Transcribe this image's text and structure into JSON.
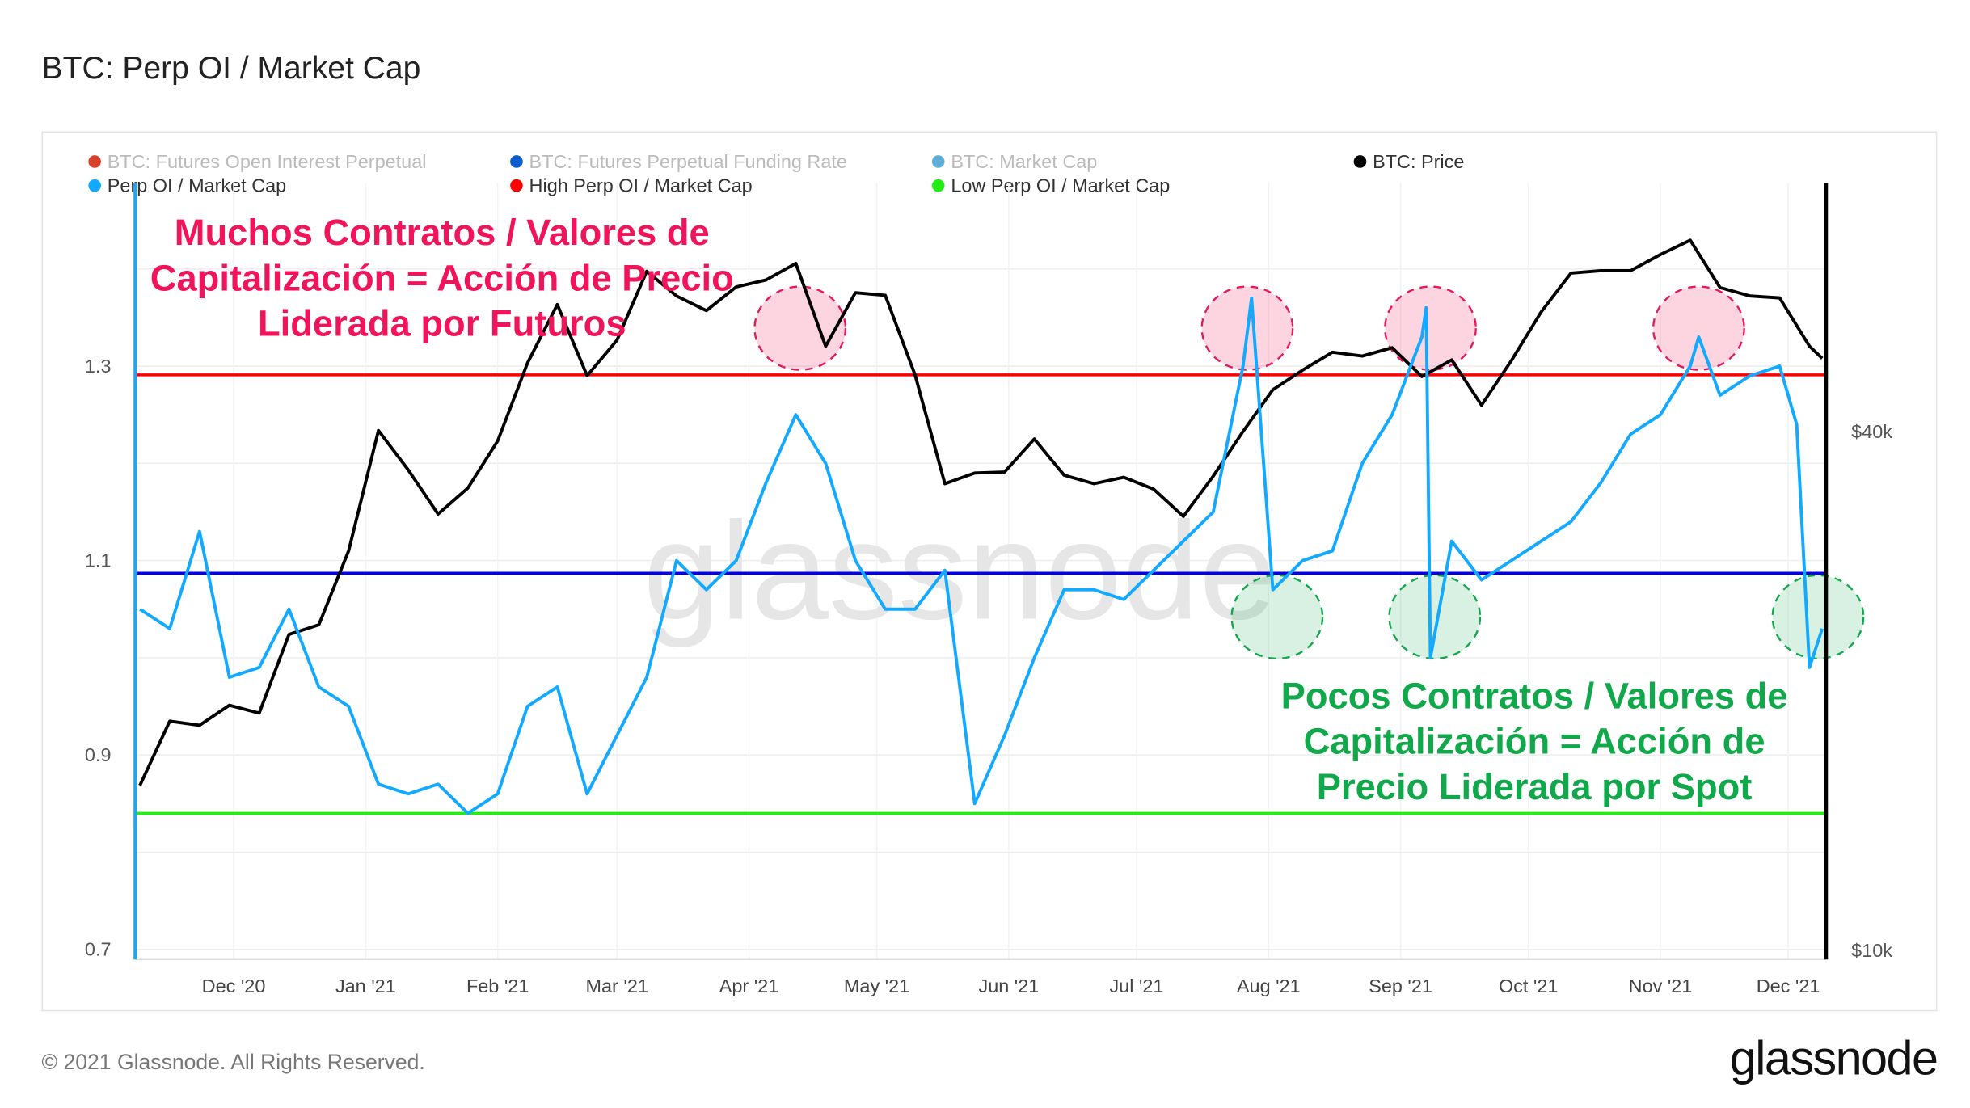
{
  "title": "BTC: Perp OI / Market Cap",
  "footer": "© 2021 Glassnode. All Rights Reserved.",
  "logo": "glassnode",
  "watermark": "glassnode",
  "legend": [
    {
      "label": "BTC: Futures Open Interest Perpetual",
      "color": "#d9412f",
      "active": false
    },
    {
      "label": "BTC: Futures Perpetual Funding Rate",
      "color": "#0a5cc9",
      "active": false
    },
    {
      "label": "BTC: Market Cap",
      "color": "#5eaed6",
      "active": false
    },
    {
      "label": "BTC: Price",
      "color": "#000000",
      "active": true
    },
    {
      "label": "Perp OI / Market Cap",
      "color": "#12a9ff",
      "active": true
    },
    {
      "label": "High Perp OI / Market Cap",
      "color": "#ff0000",
      "active": true
    },
    {
      "label": "Low Perp OI / Market Cap",
      "color": "#22ee11",
      "active": true
    }
  ],
  "annotations": {
    "high_text": [
      "Muchos Contratos / Valores de",
      "Capitalización = Acción de Precio",
      "Liderada por Futuros"
    ],
    "high_color": "#f0145a",
    "low_text": [
      "Pocos Contratos / Valores de",
      "Capitalización = Acción de",
      "Precio Liderada por Spot"
    ],
    "low_color": "#10a84a",
    "high_markers": [
      {
        "date": "2021-04-13",
        "value": 1.339
      },
      {
        "date": "2021-07-27",
        "value": 1.339
      },
      {
        "date": "2021-09-08",
        "value": 1.339
      },
      {
        "date": "2021-11-10",
        "value": 1.339
      }
    ],
    "low_markers": [
      {
        "date": "2021-08-03",
        "value": 1.042
      },
      {
        "date": "2021-09-09",
        "value": 1.042
      },
      {
        "date": "2021-12-08",
        "value": 1.042
      }
    ]
  },
  "chart_data": {
    "type": "line",
    "title": "BTC: Perp OI / Market Cap",
    "x_ticks": [
      "Dec '20",
      "Jan '21",
      "Feb '21",
      "Mar '21",
      "Apr '21",
      "May '21",
      "Jun '21",
      "Jul '21",
      "Aug '21",
      "Sep '21",
      "Oct '21",
      "Nov '21",
      "Dec '21"
    ],
    "x_tick_dates": [
      "2020-12-01",
      "2021-01-01",
      "2021-02-01",
      "2021-03-01",
      "2021-04-01",
      "2021-05-01",
      "2021-06-01",
      "2021-07-01",
      "2021-08-01",
      "2021-09-01",
      "2021-10-01",
      "2021-11-01",
      "2021-12-01"
    ],
    "xlim": [
      "2020-11-08",
      "2021-12-10"
    ],
    "y_left": {
      "ticks": [
        0.7,
        0.9,
        1.1,
        1.3
      ],
      "tick_labels": [
        "0.7",
        "0.9",
        "1.1",
        "1.3"
      ],
      "range": [
        0.7,
        1.5
      ]
    },
    "y_right": {
      "scale": "log",
      "ticks": [
        10000,
        40000
      ],
      "tick_labels": [
        "$10k",
        "$40k"
      ]
    },
    "grid": "horizontal",
    "legend_position": "top",
    "thresholds": [
      {
        "name": "High Perp OI / Market Cap",
        "value": 1.291,
        "color": "#ff0000"
      },
      {
        "name": "Low Perp OI / Market Cap",
        "value": 0.84,
        "color": "#22ee11"
      },
      {
        "name": "",
        "value": 1.087,
        "color": "#0000ee"
      }
    ],
    "series": [
      {
        "name": "Perp OI / Market Cap",
        "axis": "left",
        "color": "#12a9ff",
        "dates": [
          "2020-11-09",
          "2020-11-16",
          "2020-11-23",
          "2020-11-30",
          "2020-12-07",
          "2020-12-14",
          "2020-12-21",
          "2020-12-28",
          "2021-01-04",
          "2021-01-11",
          "2021-01-18",
          "2021-01-25",
          "2021-02-01",
          "2021-02-08",
          "2021-02-15",
          "2021-02-22",
          "2021-03-01",
          "2021-03-08",
          "2021-03-15",
          "2021-03-22",
          "2021-03-29",
          "2021-04-05",
          "2021-04-12",
          "2021-04-19",
          "2021-04-26",
          "2021-05-03",
          "2021-05-10",
          "2021-05-17",
          "2021-05-24",
          "2021-05-31",
          "2021-06-07",
          "2021-06-14",
          "2021-06-21",
          "2021-06-28",
          "2021-07-05",
          "2021-07-12",
          "2021-07-19",
          "2021-07-26",
          "2021-07-28",
          "2021-08-02",
          "2021-08-09",
          "2021-08-16",
          "2021-08-23",
          "2021-08-30",
          "2021-09-06",
          "2021-09-07",
          "2021-09-08",
          "2021-09-13",
          "2021-09-20",
          "2021-09-27",
          "2021-10-04",
          "2021-10-11",
          "2021-10-18",
          "2021-10-25",
          "2021-11-01",
          "2021-11-08",
          "2021-11-10",
          "2021-11-15",
          "2021-11-22",
          "2021-11-29",
          "2021-12-03",
          "2021-12-06",
          "2021-12-09"
        ],
        "values": [
          1.05,
          1.03,
          1.13,
          0.98,
          0.99,
          1.05,
          0.97,
          0.95,
          0.87,
          0.86,
          0.87,
          0.84,
          0.86,
          0.95,
          0.97,
          0.86,
          0.92,
          0.98,
          1.1,
          1.07,
          1.1,
          1.18,
          1.25,
          1.2,
          1.1,
          1.05,
          1.05,
          1.09,
          0.85,
          0.92,
          1.0,
          1.07,
          1.07,
          1.06,
          1.09,
          1.12,
          1.15,
          1.3,
          1.37,
          1.07,
          1.1,
          1.11,
          1.2,
          1.25,
          1.33,
          1.36,
          1.0,
          1.12,
          1.08,
          1.1,
          1.12,
          1.14,
          1.18,
          1.23,
          1.25,
          1.3,
          1.33,
          1.27,
          1.29,
          1.3,
          1.24,
          0.99,
          1.03
        ]
      },
      {
        "name": "BTC: Price",
        "axis": "right",
        "color": "#000000",
        "dates": [
          "2020-11-09",
          "2020-11-16",
          "2020-11-23",
          "2020-11-30",
          "2020-12-07",
          "2020-12-14",
          "2020-12-21",
          "2020-12-28",
          "2021-01-04",
          "2021-01-11",
          "2021-01-18",
          "2021-01-25",
          "2021-02-01",
          "2021-02-08",
          "2021-02-15",
          "2021-02-22",
          "2021-03-01",
          "2021-03-08",
          "2021-03-15",
          "2021-03-22",
          "2021-03-29",
          "2021-04-05",
          "2021-04-12",
          "2021-04-19",
          "2021-04-26",
          "2021-05-03",
          "2021-05-10",
          "2021-05-17",
          "2021-05-24",
          "2021-05-31",
          "2021-06-07",
          "2021-06-14",
          "2021-06-21",
          "2021-06-28",
          "2021-07-05",
          "2021-07-12",
          "2021-07-19",
          "2021-07-26",
          "2021-08-02",
          "2021-08-09",
          "2021-08-16",
          "2021-08-23",
          "2021-08-30",
          "2021-09-06",
          "2021-09-13",
          "2021-09-20",
          "2021-09-27",
          "2021-10-04",
          "2021-10-11",
          "2021-10-18",
          "2021-10-25",
          "2021-11-01",
          "2021-11-08",
          "2021-11-15",
          "2021-11-22",
          "2021-11-29",
          "2021-12-06",
          "2021-12-09"
        ],
        "values": [
          15500,
          18400,
          18200,
          19200,
          18800,
          23200,
          23800,
          29000,
          40000,
          36000,
          32000,
          34300,
          38900,
          47900,
          56000,
          46300,
          50900,
          61200,
          57300,
          55100,
          58700,
          59800,
          62500,
          50100,
          57800,
          57400,
          46400,
          34700,
          35700,
          35800,
          39100,
          35500,
          34700,
          35300,
          34200,
          31800,
          35400,
          39900,
          44600,
          47000,
          49300,
          48800,
          49900,
          46200,
          48300,
          42800,
          48200,
          54900,
          60900,
          61300,
          61300,
          64000,
          66500,
          58600,
          57300,
          57000,
          50100,
          48500
        ]
      }
    ]
  }
}
